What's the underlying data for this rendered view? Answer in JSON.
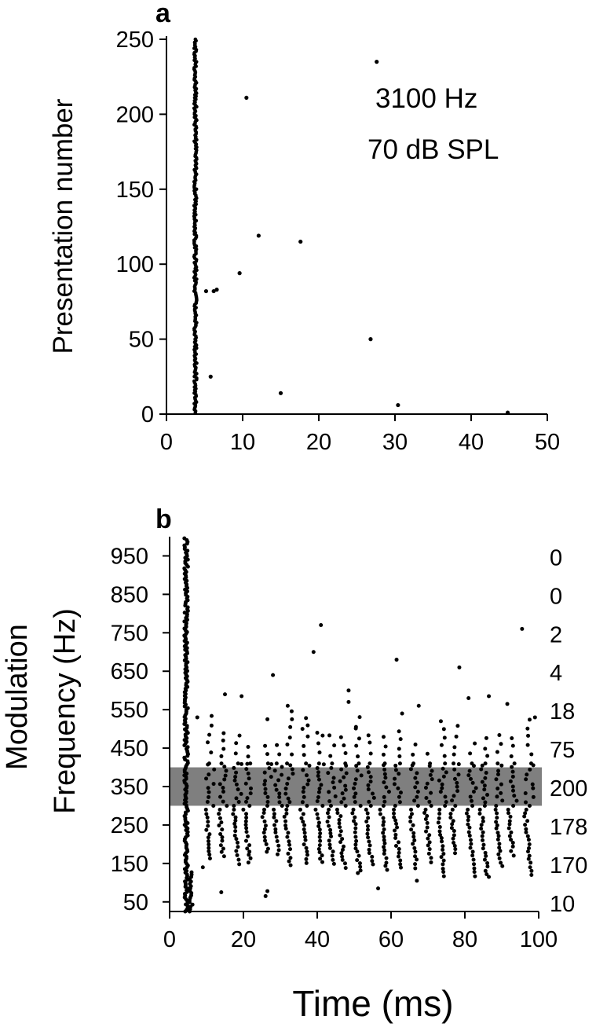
{
  "figure": {
    "colors": {
      "ink": "#000000",
      "band": "#7f7f7f",
      "background": "#ffffff"
    }
  },
  "chart_data": [
    {
      "type": "scatter",
      "panel_label": "a",
      "annotations": [
        "3100 Hz",
        "70 dB SPL"
      ],
      "title": "",
      "xlabel": "",
      "ylabel": "Presentation number",
      "xlim": [
        0,
        50
      ],
      "ylim": [
        0,
        250
      ],
      "xticks": [
        0,
        10,
        20,
        30,
        40,
        50
      ],
      "yticks": [
        0,
        50,
        100,
        150,
        200,
        250
      ],
      "grid": false,
      "main_spike_column": {
        "time_ms": 3.8,
        "from_presentation": 1,
        "to_presentation": 250
      },
      "scattered_spikes": [
        {
          "x": 5.2,
          "y": 82
        },
        {
          "x": 6.2,
          "y": 82
        },
        {
          "x": 6.6,
          "y": 83
        },
        {
          "x": 9.6,
          "y": 94
        },
        {
          "x": 10.5,
          "y": 211
        },
        {
          "x": 12.1,
          "y": 119
        },
        {
          "x": 17.6,
          "y": 115
        },
        {
          "x": 5.8,
          "y": 25
        },
        {
          "x": 15.0,
          "y": 14
        },
        {
          "x": 26.8,
          "y": 50
        },
        {
          "x": 27.6,
          "y": 235
        },
        {
          "x": 30.4,
          "y": 6
        },
        {
          "x": 44.8,
          "y": 1
        }
      ]
    },
    {
      "type": "scatter",
      "panel_label": "b",
      "title": "",
      "xlabel": "Time (ms)",
      "ylabel_lines": [
        "Modulation",
        "Frequency (Hz)"
      ],
      "xlim": [
        0,
        100
      ],
      "ylim": [
        25,
        1000
      ],
      "xticks": [
        0,
        20,
        40,
        60,
        80,
        100
      ],
      "yticks": [
        50,
        150,
        250,
        350,
        450,
        550,
        650,
        750,
        850,
        950
      ],
      "grid": false,
      "highlight_band": {
        "from": 300,
        "to": 400
      },
      "right_counts": [
        {
          "y": 950,
          "label": "0"
        },
        {
          "y": 850,
          "label": "0"
        },
        {
          "y": 750,
          "label": "2"
        },
        {
          "y": 650,
          "label": "4"
        },
        {
          "y": 550,
          "label": "18"
        },
        {
          "y": 450,
          "label": "75"
        },
        {
          "y": 350,
          "label": "200"
        },
        {
          "y": 250,
          "label": "178"
        },
        {
          "y": 150,
          "label": "170"
        },
        {
          "y": 50,
          "label": "10"
        }
      ],
      "onset_column": {
        "time_ms": 4.5,
        "from": 25,
        "to": 1000
      },
      "isolated_spikes": [
        {
          "x": 41,
          "y": 770
        },
        {
          "x": 39,
          "y": 700
        },
        {
          "x": 28,
          "y": 640
        },
        {
          "x": 61.5,
          "y": 680
        },
        {
          "x": 78.5,
          "y": 660
        },
        {
          "x": 95.5,
          "y": 760
        },
        {
          "x": 15,
          "y": 590
        },
        {
          "x": 19.5,
          "y": 585
        },
        {
          "x": 32,
          "y": 560
        },
        {
          "x": 48.5,
          "y": 600
        },
        {
          "x": 48.5,
          "y": 570
        },
        {
          "x": 67.5,
          "y": 560
        },
        {
          "x": 73.5,
          "y": 520
        },
        {
          "x": 81,
          "y": 580
        },
        {
          "x": 86.5,
          "y": 585
        },
        {
          "x": 91.5,
          "y": 565
        },
        {
          "x": 99,
          "y": 530
        },
        {
          "x": 7.5,
          "y": 530
        },
        {
          "x": 26.5,
          "y": 525
        },
        {
          "x": 36,
          "y": 500
        },
        {
          "x": 40,
          "y": 490
        },
        {
          "x": 50.5,
          "y": 505
        },
        {
          "x": 63,
          "y": 540
        },
        {
          "x": 9,
          "y": 140
        },
        {
          "x": 14,
          "y": 75
        },
        {
          "x": 26,
          "y": 65
        },
        {
          "x": 26.5,
          "y": 78
        },
        {
          "x": 51,
          "y": 125
        },
        {
          "x": 56.5,
          "y": 85
        },
        {
          "x": 67,
          "y": 105
        },
        {
          "x": 86.5,
          "y": 115
        }
      ],
      "burst_times_ms": [
        11,
        14.5,
        18.5,
        21.5,
        26.5,
        29.5,
        32.5,
        37,
        41,
        44,
        47,
        51,
        54.5,
        58.5,
        62,
        66.5,
        70.5,
        74,
        77.5,
        82,
        85.5,
        89.5,
        93,
        97.5
      ]
    }
  ]
}
